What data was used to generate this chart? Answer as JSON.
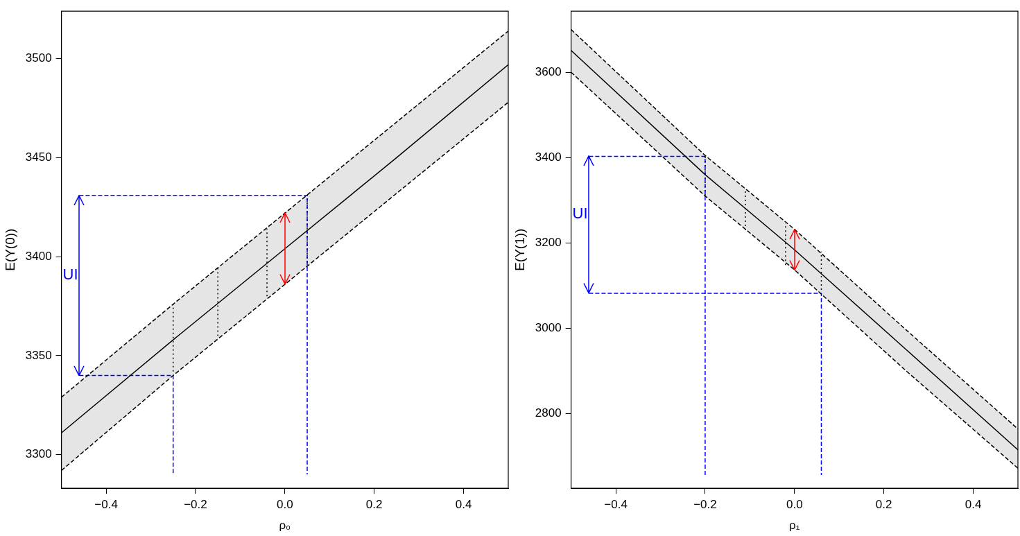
{
  "chart_data": [
    {
      "type": "line",
      "xlabel": "ρ₀",
      "ylabel": "E(Y(0))",
      "xlim": [
        -0.5,
        0.5
      ],
      "xticks": [
        {
          "value": -0.4,
          "label": "−0.4"
        },
        {
          "value": -0.2,
          "label": "−0.2"
        },
        {
          "value": 0,
          "label": "0.0"
        },
        {
          "value": 0.2,
          "label": "0.2"
        },
        {
          "value": 0.4,
          "label": "0.4"
        }
      ],
      "ylim": [
        3283,
        3524
      ],
      "yticks": [
        3300,
        3350,
        3400,
        3450,
        3500
      ],
      "grid": false,
      "legend": false,
      "annotations": [
        "UI"
      ],
      "series": [
        {
          "type": "line",
          "color": "#000000",
          "x": [
            -0.5,
            -0.25,
            0,
            0.25,
            0.5
          ],
          "values": [
            3311,
            3358,
            3404,
            3450,
            3497
          ],
          "lower": [
            3292,
            3340,
            3386,
            3432,
            3478
          ],
          "upper": [
            3329,
            3376,
            3422,
            3468,
            3514
          ]
        },
        {
          "type": "line",
          "color": "#000000",
          "line_style": "dashed",
          "x": [
            -0.5,
            -0.25,
            0,
            0.25,
            0.5
          ],
          "values": [
            3292,
            3340,
            3386,
            3432,
            3478
          ]
        },
        {
          "type": "line",
          "color": "#000000",
          "line_style": "dashed",
          "x": [
            -0.5,
            -0.25,
            0,
            0.25,
            0.5
          ],
          "values": [
            3329,
            3376,
            3422,
            3468,
            3514
          ]
        },
        {
          "type": "line",
          "color": "#000000",
          "line_style": "dotted",
          "x": [
            -0.25,
            -0.25
          ],
          "values": [
            3342,
            3376
          ]
        },
        {
          "type": "line",
          "color": "#000000",
          "line_style": "dotted",
          "x": [
            -0.15,
            -0.15
          ],
          "values": [
            3360,
            3395
          ]
        },
        {
          "type": "line",
          "color": "#000000",
          "line_style": "dotted",
          "x": [
            -0.04,
            -0.04
          ],
          "values": [
            3380,
            3414
          ]
        },
        {
          "type": "line",
          "color": "#000000",
          "line_style": "dotted",
          "x": [
            0.05,
            0.05
          ],
          "values": [
            3395,
            3431
          ]
        },
        {
          "type": "line",
          "color": "#0000ff",
          "line_style": "dashed",
          "x": [
            -0.46,
            -0.25,
            -0.25
          ],
          "values": [
            3340,
            3340,
            3290
          ]
        },
        {
          "type": "line",
          "color": "#0000ff",
          "line_style": "dashed",
          "x": [
            -0.46,
            0.05,
            0.05
          ],
          "values": [
            3431,
            3431,
            3290
          ]
        }
      ]
    },
    {
      "type": "line",
      "xlabel": "ρ₁",
      "ylabel": "E(Y(1))",
      "xlim": [
        -0.5,
        0.5
      ],
      "xticks": [
        {
          "value": -0.4,
          "label": "−0.4"
        },
        {
          "value": -0.2,
          "label": "−0.2"
        },
        {
          "value": 0,
          "label": "0.0"
        },
        {
          "value": 0.2,
          "label": "0.2"
        },
        {
          "value": 0.4,
          "label": "0.4"
        }
      ],
      "ylim": [
        2625,
        3743
      ],
      "yticks": [
        2800,
        3000,
        3200,
        3400,
        3600
      ],
      "grid": false,
      "legend": false,
      "annotations": [
        "UI"
      ],
      "series": [
        {
          "type": "line",
          "color": "#000000",
          "x": [
            -0.5,
            -0.2,
            0,
            0.25,
            0.5
          ],
          "values": [
            3651,
            3360,
            3184,
            2950,
            2715
          ],
          "lower": [
            3600,
            3310,
            3137,
            2900,
            2672
          ],
          "upper": [
            3700,
            3405,
            3232,
            2996,
            2764
          ]
        },
        {
          "type": "line",
          "color": "#000000",
          "line_style": "dashed",
          "x": [
            -0.5,
            -0.2,
            0,
            0.25,
            0.5
          ],
          "values": [
            3600,
            3310,
            3137,
            2900,
            2672
          ]
        },
        {
          "type": "line",
          "color": "#000000",
          "line_style": "dashed",
          "x": [
            -0.5,
            -0.2,
            0,
            0.25,
            0.5
          ],
          "values": [
            3700,
            3405,
            3232,
            2996,
            2764
          ]
        },
        {
          "type": "line",
          "color": "#000000",
          "line_style": "dotted",
          "x": [
            -0.2,
            -0.2
          ],
          "values": [
            3311,
            3403
          ]
        },
        {
          "type": "line",
          "color": "#000000",
          "line_style": "dotted",
          "x": [
            -0.11,
            -0.11
          ],
          "values": [
            3230,
            3321
          ]
        },
        {
          "type": "line",
          "color": "#000000",
          "line_style": "dotted",
          "x": [
            -0.02,
            -0.02
          ],
          "values": [
            3148,
            3246
          ]
        },
        {
          "type": "line",
          "color": "#000000",
          "line_style": "dotted",
          "x": [
            0.06,
            0.06
          ],
          "values": [
            3090,
            3180
          ]
        },
        {
          "type": "line",
          "color": "#0000ff",
          "line_style": "dashed",
          "x": [
            -0.46,
            -0.2,
            -0.2
          ],
          "values": [
            3403,
            3403,
            2656
          ]
        },
        {
          "type": "line",
          "color": "#0000ff",
          "line_style": "dashed",
          "x": [
            -0.46,
            0.06,
            0.06
          ],
          "values": [
            3082,
            3082,
            2656
          ]
        }
      ]
    }
  ]
}
